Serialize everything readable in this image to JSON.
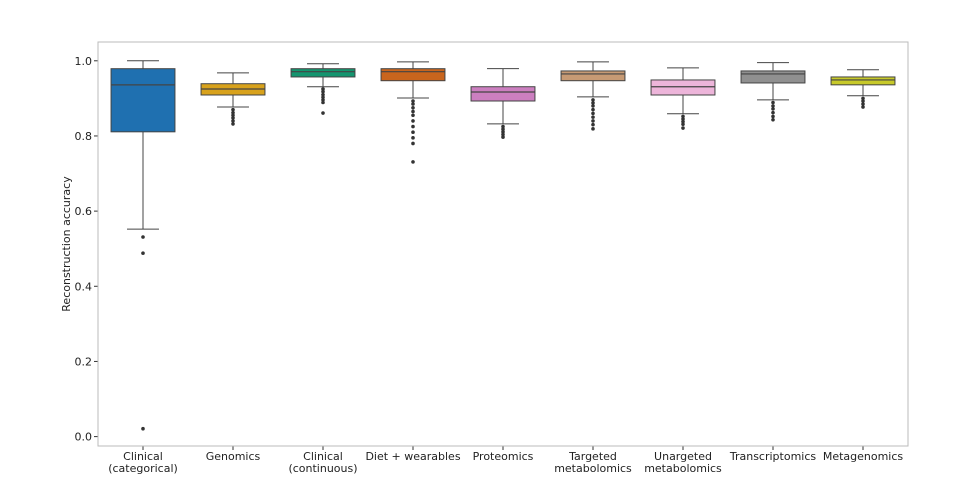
{
  "chart_data": {
    "type": "box",
    "title": "",
    "xlabel": "",
    "ylabel": "Reconstruction accuracy",
    "ylim": [
      -0.025,
      1.05
    ],
    "yticks": [
      "0.0",
      "0.2",
      "0.4",
      "0.6",
      "0.8",
      "1.0"
    ],
    "grid": false,
    "categories": [
      {
        "label": [
          "Clinical",
          "(categorical)"
        ],
        "color": "#1f70b0",
        "whisker_high": 1.0,
        "q3": 0.979,
        "median": 0.936,
        "q1": 0.811,
        "whisker_low": 0.552,
        "outliers": [
          0.531,
          0.488,
          0.021
        ]
      },
      {
        "label": [
          "Genomics"
        ],
        "color": "#d8a21c",
        "whisker_high": 0.968,
        "q3": 0.939,
        "median": 0.925,
        "q1": 0.909,
        "whisker_low": 0.877,
        "outliers": [
          0.87,
          0.862,
          0.855,
          0.848,
          0.84,
          0.832
        ]
      },
      {
        "label": [
          "Clinical",
          "(continuous)"
        ],
        "color": "#14956f",
        "whisker_high": 0.992,
        "q3": 0.979,
        "median": 0.971,
        "q1": 0.957,
        "whisker_low": 0.931,
        "outliers": [
          0.925,
          0.918,
          0.91,
          0.903,
          0.896,
          0.889,
          0.861
        ]
      },
      {
        "label": [
          "Diet + wearables"
        ],
        "color": "#c9651d",
        "whisker_high": 0.997,
        "q3": 0.979,
        "median": 0.971,
        "q1": 0.947,
        "whisker_low": 0.901,
        "outliers": [
          0.893,
          0.885,
          0.875,
          0.865,
          0.855,
          0.84,
          0.825,
          0.81,
          0.795,
          0.78,
          0.731
        ]
      },
      {
        "label": [
          "Proteomics"
        ],
        "color": "#cc7fc0",
        "whisker_high": 0.979,
        "q3": 0.931,
        "median": 0.917,
        "q1": 0.893,
        "whisker_low": 0.832,
        "outliers": [
          0.825,
          0.818,
          0.811,
          0.804,
          0.797
        ]
      },
      {
        "label": [
          "Targeted",
          "metabolomics"
        ],
        "color": "#c79a74",
        "whisker_high": 0.997,
        "q3": 0.973,
        "median": 0.965,
        "q1": 0.947,
        "whisker_low": 0.904,
        "outliers": [
          0.896,
          0.888,
          0.88,
          0.87,
          0.86,
          0.85,
          0.84,
          0.83,
          0.819
        ]
      },
      {
        "label": [
          "Unargeted",
          "metabolomics"
        ],
        "color": "#edb5da",
        "whisker_high": 0.981,
        "q3": 0.949,
        "median": 0.931,
        "q1": 0.909,
        "whisker_low": 0.859,
        "outliers": [
          0.852,
          0.845,
          0.838,
          0.831,
          0.821
        ]
      },
      {
        "label": [
          "Transcriptomics"
        ],
        "color": "#909090",
        "whisker_high": 0.995,
        "q3": 0.973,
        "median": 0.965,
        "q1": 0.941,
        "whisker_low": 0.896,
        "outliers": [
          0.889,
          0.88,
          0.872,
          0.862,
          0.852,
          0.843
        ]
      },
      {
        "label": [
          "Metagenomics"
        ],
        "color": "#c7c92a",
        "whisker_high": 0.976,
        "q3": 0.957,
        "median": 0.949,
        "q1": 0.936,
        "whisker_low": 0.907,
        "outliers": [
          0.9,
          0.893,
          0.885,
          0.877
        ]
      }
    ]
  }
}
